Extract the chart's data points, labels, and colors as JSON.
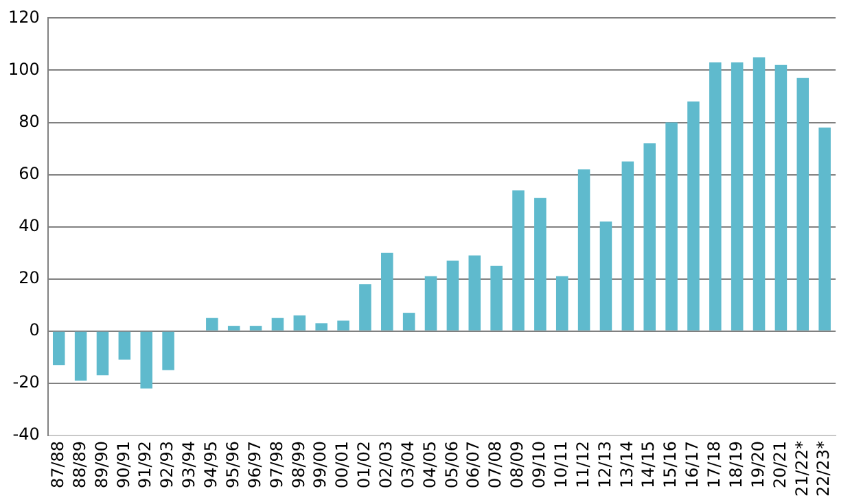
{
  "chart_data": {
    "type": "bar",
    "categories": [
      "87/88",
      "88/89",
      "89/90",
      "90/91",
      "91/92",
      "92/93",
      "93/94",
      "94/95",
      "95/96",
      "96/97",
      "97/98",
      "98/99",
      "99/00",
      "00/01",
      "01/02",
      "02/03",
      "03/04",
      "04/05",
      "05/06",
      "06/07",
      "07/08",
      "08/09",
      "09/10",
      "10/11",
      "11/12",
      "12/13",
      "13/14",
      "14/15",
      "15/16",
      "16/17",
      "17/18",
      "18/19",
      "19/20",
      "20/21",
      "21/22*",
      "22/23*"
    ],
    "values": [
      -13,
      -19,
      -17,
      -11,
      -22,
      -15,
      null,
      5,
      2,
      2,
      5,
      6,
      3,
      4,
      18,
      30,
      7,
      21,
      27,
      29,
      25,
      54,
      51,
      21,
      62,
      42,
      65,
      72,
      80,
      88,
      103,
      103,
      105,
      102,
      97,
      78
    ],
    "color": "#5fbacd",
    "ylim": [
      -40,
      120
    ],
    "yticks": [
      -40,
      -20,
      0,
      20,
      40,
      60,
      80,
      100,
      120
    ],
    "grid": "y",
    "legend": false
  }
}
